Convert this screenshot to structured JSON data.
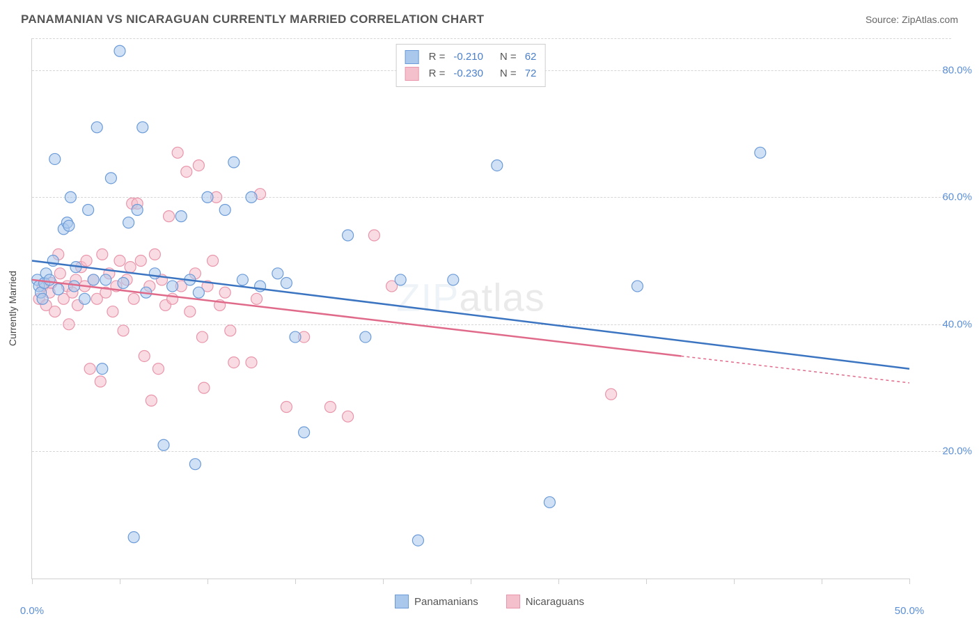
{
  "header": {
    "title": "PANAMANIAN VS NICARAGUAN CURRENTLY MARRIED CORRELATION CHART",
    "source_label": "Source:",
    "source_value": "ZipAtlas.com"
  },
  "chart": {
    "type": "scatter",
    "ylabel": "Currently Married",
    "watermark": "ZIPatlas",
    "xlim": [
      0,
      50
    ],
    "ylim": [
      0,
      85
    ],
    "xticks": [
      0,
      5,
      10,
      15,
      20,
      25,
      30,
      35,
      40,
      45,
      50
    ],
    "xtick_labels": {
      "0": "0.0%",
      "50": "50.0%"
    },
    "yticks": [
      20,
      40,
      60,
      80
    ],
    "ytick_labels": [
      "20.0%",
      "40.0%",
      "60.0%",
      "80.0%"
    ],
    "background_color": "#ffffff",
    "grid_color": "#d5d5d5",
    "axis_color": "#cfcfcf",
    "tick_label_color": "#5b8fd6",
    "marker_radius": 8,
    "marker_opacity": 0.55,
    "line_width": 2.5,
    "series": [
      {
        "name": "Panamanians",
        "color_fill": "#a9c8ec",
        "color_stroke": "#6b9bd8",
        "line_color": "#3b74c0",
        "R": "-0.210",
        "N": "62",
        "trend": {
          "x1": 0,
          "y1": 50,
          "x2": 50,
          "y2": 33
        },
        "extrapolate_from_x": 50,
        "points": [
          [
            0.3,
            47
          ],
          [
            0.4,
            46
          ],
          [
            0.5,
            45
          ],
          [
            0.6,
            44
          ],
          [
            0.7,
            46.5
          ],
          [
            0.8,
            48
          ],
          [
            1.0,
            47
          ],
          [
            1.2,
            50
          ],
          [
            1.3,
            66
          ],
          [
            1.5,
            45.5
          ],
          [
            1.8,
            55
          ],
          [
            2.0,
            56
          ],
          [
            2.1,
            55.5
          ],
          [
            2.2,
            60
          ],
          [
            2.4,
            46
          ],
          [
            2.5,
            49
          ],
          [
            3.0,
            44
          ],
          [
            3.2,
            58
          ],
          [
            3.5,
            47
          ],
          [
            3.7,
            71
          ],
          [
            4.0,
            33
          ],
          [
            4.2,
            47
          ],
          [
            4.5,
            63
          ],
          [
            5.0,
            83
          ],
          [
            5.2,
            46.5
          ],
          [
            5.5,
            56
          ],
          [
            5.8,
            6.5
          ],
          [
            6.0,
            58
          ],
          [
            6.3,
            71
          ],
          [
            6.5,
            45
          ],
          [
            7.0,
            48
          ],
          [
            7.5,
            21
          ],
          [
            8.0,
            46
          ],
          [
            8.5,
            57
          ],
          [
            9.0,
            47
          ],
          [
            9.3,
            18
          ],
          [
            9.5,
            45
          ],
          [
            10.0,
            60
          ],
          [
            11.0,
            58
          ],
          [
            11.5,
            65.5
          ],
          [
            12.0,
            47
          ],
          [
            12.5,
            60
          ],
          [
            13.0,
            46
          ],
          [
            14.0,
            48
          ],
          [
            14.5,
            46.5
          ],
          [
            15.0,
            38
          ],
          [
            15.5,
            23
          ],
          [
            18.0,
            54
          ],
          [
            19.0,
            38
          ],
          [
            21.0,
            47
          ],
          [
            22.0,
            6
          ],
          [
            24.0,
            47
          ],
          [
            26.5,
            65
          ],
          [
            29.5,
            12
          ],
          [
            34.5,
            46
          ],
          [
            41.5,
            67
          ]
        ]
      },
      {
        "name": "Nicaraguans",
        "color_fill": "#f4c0cc",
        "color_stroke": "#e995ab",
        "line_color": "#e06a8a",
        "R": "-0.230",
        "N": "72",
        "trend": {
          "x1": 0,
          "y1": 47,
          "x2": 37,
          "y2": 35
        },
        "extrapolate_from_x": 37,
        "points": [
          [
            0.4,
            44
          ],
          [
            0.6,
            46
          ],
          [
            0.8,
            43
          ],
          [
            1.0,
            45
          ],
          [
            1.1,
            46.5
          ],
          [
            1.3,
            42
          ],
          [
            1.5,
            51
          ],
          [
            1.6,
            48
          ],
          [
            1.8,
            44
          ],
          [
            2.0,
            46
          ],
          [
            2.1,
            40
          ],
          [
            2.3,
            45
          ],
          [
            2.5,
            47
          ],
          [
            2.6,
            43
          ],
          [
            2.8,
            49
          ],
          [
            3.0,
            46
          ],
          [
            3.1,
            50
          ],
          [
            3.3,
            33
          ],
          [
            3.5,
            47
          ],
          [
            3.7,
            44
          ],
          [
            3.9,
            31
          ],
          [
            4.0,
            51
          ],
          [
            4.2,
            45
          ],
          [
            4.4,
            48
          ],
          [
            4.6,
            42
          ],
          [
            4.8,
            46
          ],
          [
            5.0,
            50
          ],
          [
            5.2,
            39
          ],
          [
            5.4,
            47
          ],
          [
            5.6,
            49
          ],
          [
            5.7,
            59
          ],
          [
            5.8,
            44
          ],
          [
            6.0,
            59
          ],
          [
            6.2,
            50
          ],
          [
            6.4,
            35
          ],
          [
            6.7,
            46
          ],
          [
            6.8,
            28
          ],
          [
            7.0,
            51
          ],
          [
            7.2,
            33
          ],
          [
            7.4,
            47
          ],
          [
            7.6,
            43
          ],
          [
            7.8,
            57
          ],
          [
            8.0,
            44
          ],
          [
            8.3,
            67
          ],
          [
            8.5,
            46
          ],
          [
            8.8,
            64
          ],
          [
            9.0,
            42
          ],
          [
            9.3,
            48
          ],
          [
            9.5,
            65
          ],
          [
            9.7,
            38
          ],
          [
            9.8,
            30
          ],
          [
            10.0,
            46
          ],
          [
            10.3,
            50
          ],
          [
            10.5,
            60
          ],
          [
            10.7,
            43
          ],
          [
            11.0,
            45
          ],
          [
            11.3,
            39
          ],
          [
            11.5,
            34
          ],
          [
            12.5,
            34
          ],
          [
            12.8,
            44
          ],
          [
            13.0,
            60.5
          ],
          [
            14.5,
            27
          ],
          [
            15.5,
            38
          ],
          [
            17.0,
            27
          ],
          [
            18.0,
            25.5
          ],
          [
            19.5,
            54
          ],
          [
            20.5,
            46
          ],
          [
            33.0,
            29
          ]
        ]
      }
    ],
    "legend_top": {
      "R_label": "R =",
      "N_label": "N ="
    }
  }
}
